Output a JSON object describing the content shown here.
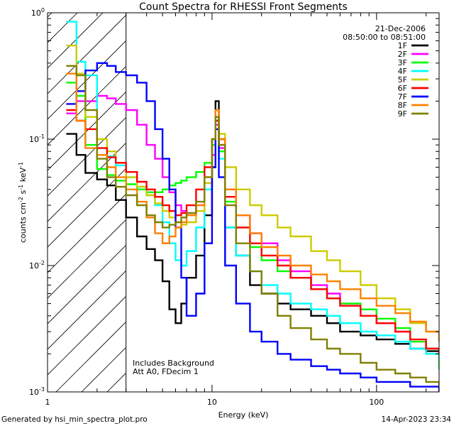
{
  "chart_data": {
    "type": "line",
    "title": "Count Spectra for RHESSI Front Segments",
    "xlabel": "Energy (keV)",
    "ylabel": {
      "main": "counts cm",
      "sup1": "-2",
      "mid": " s",
      "sup2": "-1",
      "end": " keV",
      "sup3": "-1"
    },
    "x_scale": "log",
    "y_scale": "log",
    "xlim": [
      1,
      240
    ],
    "ylim": [
      0.001,
      1
    ],
    "x_ticks": [
      {
        "value": 1,
        "label": "1"
      },
      {
        "value": 10,
        "label": "10"
      },
      {
        "value": 100,
        "label": "100"
      }
    ],
    "y_ticks": [
      {
        "value": 1,
        "base": "10",
        "exp": "0"
      },
      {
        "value": 0.1,
        "base": "10",
        "exp": "-1"
      },
      {
        "value": 0.01,
        "base": "10",
        "exp": "-2"
      },
      {
        "value": 0.001,
        "base": "10",
        "exp": "-3"
      }
    ],
    "shaded_region": {
      "x_from": 1,
      "x_to": 3,
      "style": "diagonal-hatch"
    },
    "annotations": {
      "date": "21-Dec-2006",
      "time_range": "08:50:00 to 08:51:00",
      "note1": "Includes Background",
      "note2": "Att A0, FDecim 1"
    },
    "legend_position": "top-right",
    "series": [
      {
        "name": "1F",
        "color": "#000000",
        "x": [
          1.3,
          1.5,
          1.7,
          2.0,
          2.3,
          2.6,
          3.0,
          3.5,
          4.0,
          4.5,
          5.0,
          5.5,
          6.0,
          6.5,
          7.0,
          8.0,
          9.0,
          10.0,
          10.5,
          11.0,
          12.0,
          14.0,
          17.0,
          20.0,
          25.0,
          30.0,
          40.0,
          50.0,
          60.0,
          80.0,
          100.0,
          130.0,
          160.0,
          200.0,
          240.0
        ],
        "y": [
          0.11,
          0.075,
          0.054,
          0.048,
          0.043,
          0.033,
          0.024,
          0.017,
          0.0135,
          0.011,
          0.0075,
          0.0045,
          0.0035,
          0.005,
          0.008,
          0.012,
          0.025,
          0.06,
          0.2,
          0.1,
          0.02,
          0.012,
          0.007,
          0.006,
          0.005,
          0.0045,
          0.004,
          0.0035,
          0.003,
          0.0028,
          0.0026,
          0.0024,
          0.0022,
          0.0021,
          0.002
        ]
      },
      {
        "name": "2F",
        "color": "#ff00ff",
        "x": [
          1.3,
          1.5,
          1.7,
          2.0,
          2.3,
          2.6,
          3.0,
          3.5,
          4.0,
          4.5,
          5.0,
          5.5,
          6.0,
          6.5,
          7.0,
          8.0,
          9.0,
          10.0,
          10.5,
          11.0,
          12.0,
          14.0,
          17.0,
          20.0,
          25.0,
          30.0,
          40.0,
          50.0,
          60.0,
          80.0,
          100.0,
          130.0,
          160.0,
          200.0,
          240.0
        ],
        "y": [
          0.16,
          0.2,
          0.2,
          0.22,
          0.21,
          0.19,
          0.17,
          0.13,
          0.09,
          0.07,
          0.05,
          0.038,
          0.03,
          0.027,
          0.026,
          0.03,
          0.045,
          0.075,
          0.13,
          0.085,
          0.04,
          0.025,
          0.018,
          0.015,
          0.011,
          0.009,
          0.007,
          0.006,
          0.005,
          0.0045,
          0.0035,
          0.003,
          0.0025,
          0.0022,
          0.002
        ]
      },
      {
        "name": "3F",
        "color": "#00ff00",
        "x": [
          1.3,
          1.5,
          1.7,
          2.0,
          2.3,
          2.6,
          3.0,
          3.5,
          4.0,
          4.5,
          5.0,
          5.5,
          6.0,
          6.5,
          7.0,
          8.0,
          9.0,
          10.0,
          10.5,
          11.0,
          12.0,
          14.0,
          17.0,
          20.0,
          25.0,
          30.0,
          40.0,
          50.0,
          60.0,
          80.0,
          100.0,
          130.0,
          160.0,
          200.0,
          240.0
        ],
        "y": [
          0.28,
          0.22,
          0.09,
          0.058,
          0.052,
          0.047,
          0.044,
          0.04,
          0.038,
          0.038,
          0.04,
          0.043,
          0.045,
          0.047,
          0.05,
          0.055,
          0.065,
          0.09,
          0.14,
          0.08,
          0.032,
          0.02,
          0.014,
          0.011,
          0.009,
          0.008,
          0.0065,
          0.0055,
          0.005,
          0.0045,
          0.0038,
          0.0032,
          0.0025,
          0.0022,
          0.0015
        ]
      },
      {
        "name": "4F",
        "color": "#00ffff",
        "x": [
          1.3,
          1.5,
          1.7,
          2.0,
          2.3,
          2.6,
          3.0,
          3.5,
          4.0,
          4.5,
          5.0,
          5.5,
          6.0,
          6.5,
          7.0,
          8.0,
          9.0,
          10.0,
          10.5,
          11.0,
          12.0,
          14.0,
          17.0,
          20.0,
          25.0,
          30.0,
          40.0,
          50.0,
          60.0,
          80.0,
          100.0,
          130.0,
          160.0,
          200.0,
          240.0
        ],
        "y": [
          0.85,
          0.41,
          0.32,
          0.085,
          0.073,
          0.062,
          0.05,
          0.042,
          0.036,
          0.03,
          0.022,
          0.015,
          0.011,
          0.01,
          0.013,
          0.02,
          0.04,
          0.1,
          0.15,
          0.07,
          0.02,
          0.012,
          0.009,
          0.007,
          0.006,
          0.005,
          0.0045,
          0.004,
          0.0035,
          0.003,
          0.0028,
          0.0025,
          0.0022,
          0.002,
          0.0018
        ]
      },
      {
        "name": "5F",
        "color": "#cccc00",
        "x": [
          1.3,
          1.5,
          1.7,
          2.0,
          2.3,
          2.6,
          3.0,
          3.5,
          4.0,
          4.5,
          5.0,
          5.5,
          6.0,
          6.5,
          7.0,
          8.0,
          9.0,
          10.0,
          10.5,
          11.0,
          12.0,
          14.0,
          17.0,
          20.0,
          25.0,
          30.0,
          40.0,
          50.0,
          60.0,
          80.0,
          100.0,
          130.0,
          160.0,
          200.0,
          240.0
        ],
        "y": [
          0.55,
          0.33,
          0.15,
          0.1,
          0.08,
          0.065,
          0.05,
          0.042,
          0.036,
          0.031,
          0.027,
          0.024,
          0.022,
          0.021,
          0.022,
          0.027,
          0.045,
          0.1,
          0.15,
          0.11,
          0.06,
          0.04,
          0.03,
          0.025,
          0.02,
          0.017,
          0.013,
          0.011,
          0.009,
          0.007,
          0.0055,
          0.0045,
          0.0035,
          0.003,
          0.0025
        ]
      },
      {
        "name": "6F",
        "color": "#ff0000",
        "x": [
          1.3,
          1.5,
          1.7,
          2.0,
          2.3,
          2.6,
          3.0,
          3.5,
          4.0,
          4.5,
          5.0,
          5.5,
          6.0,
          6.5,
          7.0,
          8.0,
          9.0,
          10.0,
          10.5,
          11.0,
          12.0,
          14.0,
          17.0,
          20.0,
          25.0,
          30.0,
          40.0,
          50.0,
          60.0,
          80.0,
          100.0,
          130.0,
          160.0,
          200.0,
          240.0
        ],
        "y": [
          0.17,
          0.14,
          0.12,
          0.085,
          0.072,
          0.065,
          0.055,
          0.046,
          0.04,
          0.035,
          0.03,
          0.027,
          0.025,
          0.026,
          0.03,
          0.04,
          0.06,
          0.1,
          0.14,
          0.09,
          0.035,
          0.02,
          0.015,
          0.012,
          0.01,
          0.008,
          0.0065,
          0.0055,
          0.0048,
          0.004,
          0.0035,
          0.003,
          0.0026,
          0.0022,
          0.002
        ]
      },
      {
        "name": "7F",
        "color": "#0000ff",
        "x": [
          1.3,
          1.5,
          1.7,
          2.0,
          2.3,
          2.6,
          3.0,
          3.5,
          4.0,
          4.5,
          5.0,
          5.5,
          6.0,
          6.5,
          7.0,
          8.0,
          9.0,
          10.0,
          10.5,
          11.0,
          12.0,
          14.0,
          17.0,
          20.0,
          25.0,
          30.0,
          40.0,
          50.0,
          60.0,
          80.0,
          100.0,
          130.0,
          160.0,
          200.0,
          240.0
        ],
        "y": [
          0.19,
          0.24,
          0.35,
          0.4,
          0.38,
          0.34,
          0.32,
          0.28,
          0.2,
          0.12,
          0.07,
          0.04,
          0.02,
          0.008,
          0.004,
          0.006,
          0.015,
          0.06,
          0.12,
          0.05,
          0.01,
          0.005,
          0.003,
          0.0025,
          0.002,
          0.0018,
          0.0016,
          0.0015,
          0.0014,
          0.0013,
          0.0012,
          0.0012,
          0.0011,
          0.0011,
          0.001
        ]
      },
      {
        "name": "8F",
        "color": "#ff8000",
        "x": [
          1.3,
          1.5,
          1.7,
          2.0,
          2.3,
          2.6,
          3.0,
          3.5,
          4.0,
          4.5,
          5.0,
          5.5,
          6.0,
          6.5,
          7.0,
          8.0,
          9.0,
          10.0,
          10.5,
          11.0,
          12.0,
          14.0,
          17.0,
          20.0,
          25.0,
          30.0,
          40.0,
          50.0,
          60.0,
          80.0,
          100.0,
          130.0,
          160.0,
          200.0,
          240.0
        ],
        "y": [
          0.33,
          0.14,
          0.085,
          0.075,
          0.06,
          0.05,
          0.04,
          0.032,
          0.024,
          0.018,
          0.015,
          0.017,
          0.02,
          0.022,
          0.025,
          0.03,
          0.05,
          0.1,
          0.17,
          0.1,
          0.04,
          0.025,
          0.018,
          0.014,
          0.012,
          0.01,
          0.0085,
          0.0075,
          0.0065,
          0.0055,
          0.0048,
          0.0042,
          0.0036,
          0.003,
          0.0025
        ]
      },
      {
        "name": "9F",
        "color": "#808000",
        "x": [
          1.3,
          1.5,
          1.7,
          2.0,
          2.3,
          2.6,
          3.0,
          3.5,
          4.0,
          4.5,
          5.0,
          5.5,
          6.0,
          6.5,
          7.0,
          8.0,
          9.0,
          10.0,
          10.5,
          11.0,
          12.0,
          14.0,
          17.0,
          20.0,
          25.0,
          30.0,
          40.0,
          50.0,
          60.0,
          80.0,
          100.0,
          130.0,
          160.0,
          200.0,
          240.0
        ],
        "y": [
          0.38,
          0.32,
          0.17,
          0.07,
          0.05,
          0.042,
          0.036,
          0.03,
          0.025,
          0.022,
          0.02,
          0.021,
          0.022,
          0.024,
          0.026,
          0.032,
          0.05,
          0.1,
          0.15,
          0.09,
          0.03,
          0.015,
          0.009,
          0.006,
          0.004,
          0.0032,
          0.0026,
          0.0022,
          0.002,
          0.0017,
          0.0015,
          0.0014,
          0.0013,
          0.0012,
          0.0011
        ]
      }
    ]
  },
  "footer": {
    "left": "Generated by hsi_min_spectra_plot.pro",
    "right": "14-Apr-2023 23:34"
  }
}
